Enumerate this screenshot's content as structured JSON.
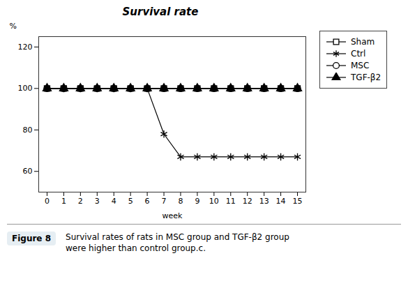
{
  "chart_data": {
    "type": "line",
    "title": "Survival rate",
    "xlabel": "week",
    "ylabel": "%",
    "x": [
      0,
      1,
      2,
      3,
      4,
      5,
      6,
      7,
      8,
      9,
      10,
      11,
      12,
      13,
      14,
      15
    ],
    "series": [
      {
        "name": "Sham",
        "color": "#000000",
        "marker": "open square",
        "values": [
          100,
          100,
          100,
          100,
          100,
          100,
          100,
          100,
          100,
          100,
          100,
          100,
          100,
          100,
          100,
          100
        ]
      },
      {
        "name": "Ctrl",
        "color": "#000000",
        "marker": "asterisk",
        "x": [
          0,
          6,
          7,
          7,
          8,
          8,
          15
        ],
        "values": [
          100,
          100,
          78,
          78,
          67,
          67,
          67
        ],
        "markers": {
          "x": [
            1,
            2,
            3,
            4,
            5,
            6,
            7,
            8,
            9,
            10,
            11,
            12,
            13,
            14,
            15
          ],
          "values": [
            100,
            100,
            100,
            100,
            100,
            100,
            78,
            67,
            67,
            67,
            67,
            67,
            67,
            67,
            67
          ]
        }
      },
      {
        "name": "MSC",
        "color": "#000000",
        "marker": "open circle",
        "values": [
          100,
          100,
          100,
          100,
          100,
          100,
          100,
          100,
          100,
          100,
          100,
          100,
          100,
          100,
          100,
          100
        ]
      },
      {
        "name": "TGF-β2",
        "color": "#000000",
        "marker": "filled triangle",
        "values": [
          100,
          100,
          100,
          100,
          100,
          100,
          100,
          100,
          100,
          100,
          100,
          100,
          100,
          100,
          100,
          100
        ]
      }
    ],
    "xlim": [
      -0.5,
      15.5
    ],
    "xticks": [
      0,
      1,
      2,
      3,
      4,
      5,
      6,
      7,
      8,
      9,
      10,
      11,
      12,
      13,
      14,
      15
    ],
    "ylim": [
      50,
      125
    ],
    "yticks": [
      60,
      80,
      100,
      120
    ],
    "grid": false,
    "legend": "upper right",
    "caption_label": "Figure 8",
    "caption": "Survival rates of rats in MSC group and TGF-β2 group\nwere higher than control group.c."
  }
}
